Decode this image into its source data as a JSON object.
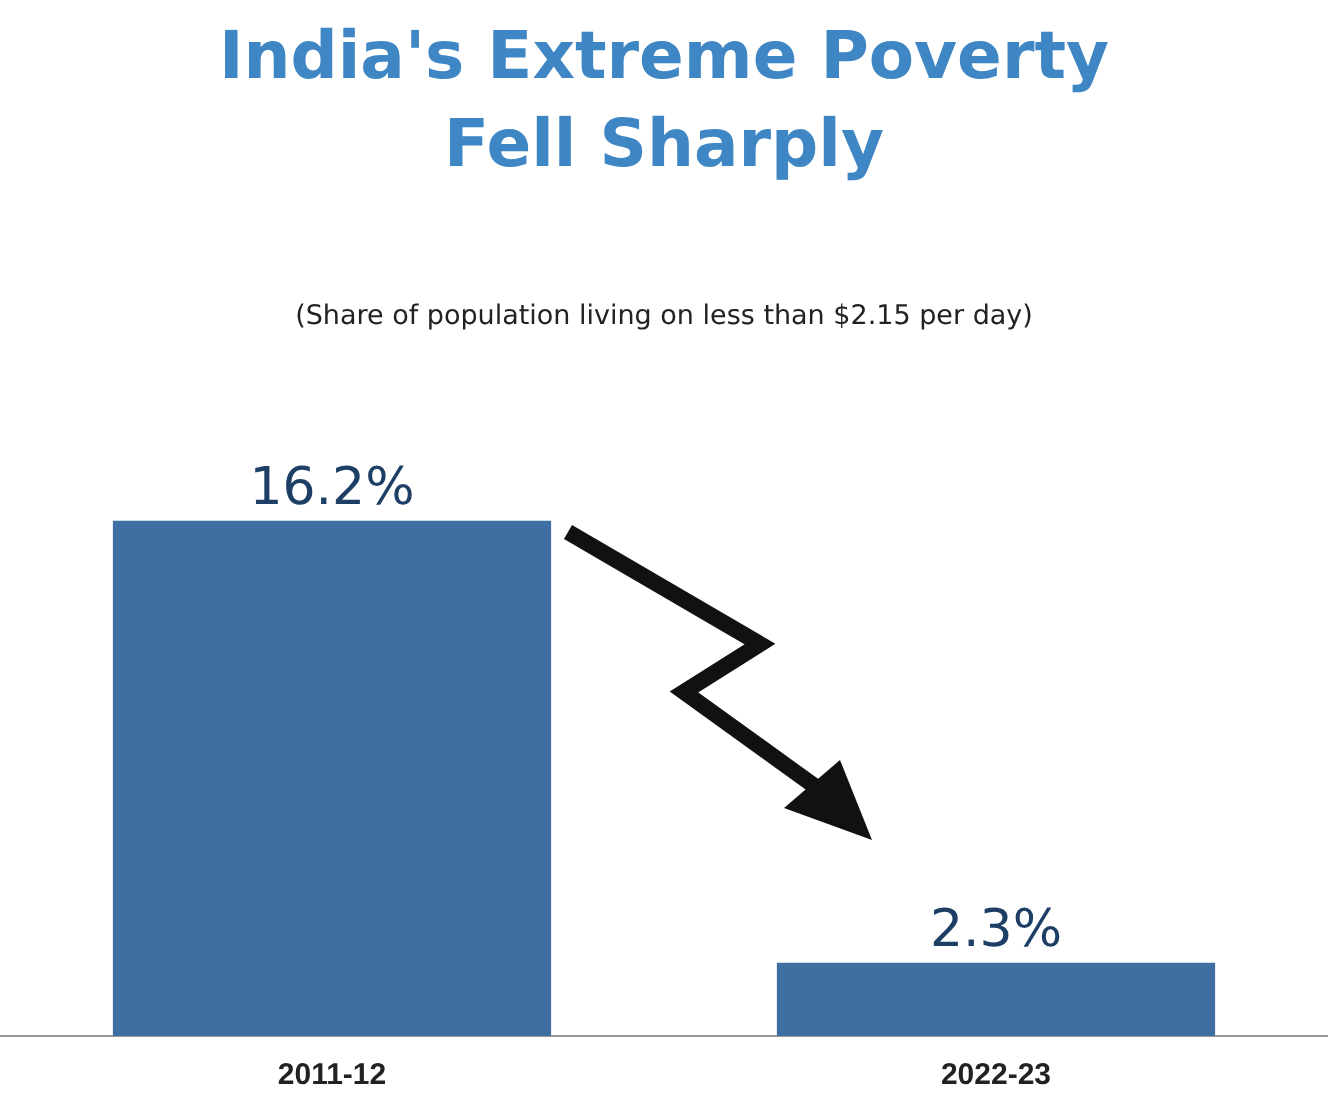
{
  "chart_data": {
    "type": "bar",
    "title": "India's Extreme Poverty\nFell Sharply",
    "subtitle": "(Share of population living on less than $2.15 per day)",
    "categories": [
      "2011-12",
      "2022-23"
    ],
    "values": [
      16.2,
      2.3
    ],
    "value_labels": [
      "16.2%",
      "2.3%"
    ],
    "color": "#3f6ea3",
    "tick_labels": "x"
  }
}
